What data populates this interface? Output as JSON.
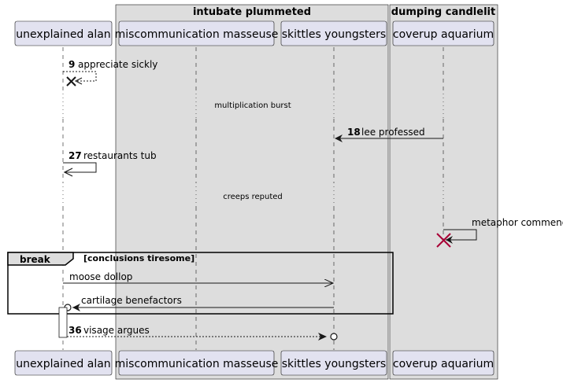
{
  "boxes": [
    {
      "title": "intubate plummeted",
      "color": "#DDDDDD"
    },
    {
      "title": "dumping candlelit",
      "color": "#DDDDDD"
    }
  ],
  "participants": [
    {
      "name": "unexplained alan"
    },
    {
      "name": "miscommunication masseuse"
    },
    {
      "name": "skittles youngsters"
    },
    {
      "name": "coverup aquarium"
    }
  ],
  "messages": [
    {
      "number": "9",
      "text": "appreciate sickly"
    },
    {
      "number": "18",
      "text": "lee professed"
    },
    {
      "number": "27",
      "text": "restaurants tub"
    },
    {
      "number": "",
      "text": "metaphor commendable"
    },
    {
      "number": "",
      "text": "moose dollop"
    },
    {
      "number": "",
      "text": "cartilage benefactors"
    },
    {
      "number": "36",
      "text": "visage argues"
    }
  ],
  "dividers": [
    {
      "text": "multiplication burst"
    },
    {
      "text": "creeps reputed"
    }
  ],
  "fragment": {
    "keyword": "break",
    "condition": "[conclusions tiresome]"
  },
  "colors": {
    "participant_fill": "#E2E2F0",
    "participant_border": "#181818",
    "box_fill": "#DDDDDD",
    "line": "#181818",
    "destroy_colored": "#A80036"
  }
}
